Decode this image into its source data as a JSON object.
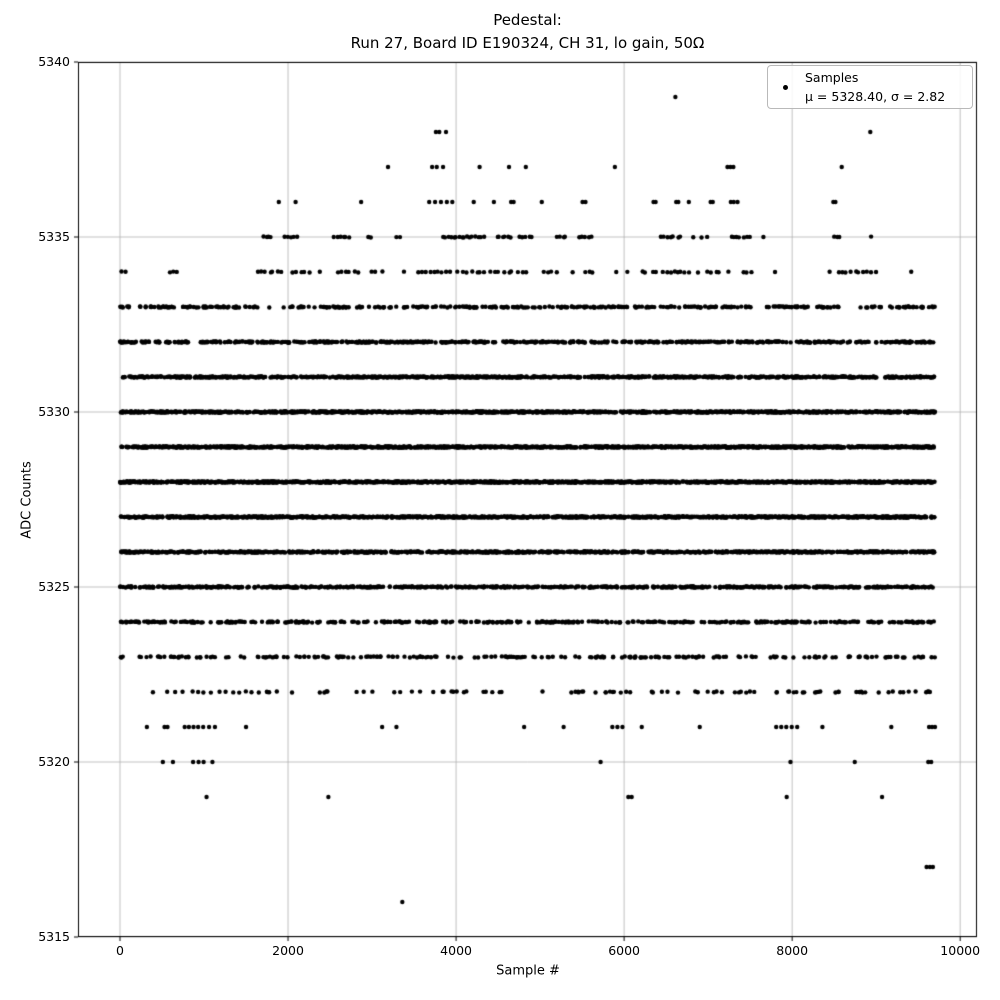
{
  "title": {
    "line1": "Pedestal:",
    "line2": "Run 27, Board ID E190324, CH 31, lo gain, 50Ω"
  },
  "axes": {
    "xlabel": "Sample #",
    "ylabel": "ADC Counts",
    "xlim": [
      -500,
      10200
    ],
    "ylim": [
      5315,
      5340
    ],
    "xtick_values": [
      0,
      2000,
      4000,
      6000,
      8000,
      10000
    ],
    "xtick_labels": [
      "0",
      "2000",
      "4000",
      "6000",
      "8000",
      "10000"
    ],
    "ytick_values": [
      5315,
      5320,
      5325,
      5330,
      5335,
      5340
    ],
    "ytick_labels": [
      "5315",
      "5320",
      "5325",
      "5330",
      "5335",
      "5340"
    ],
    "grid": true,
    "grid_color": "#b0b0b0",
    "spine_color": "#000000"
  },
  "legend": {
    "line1": "Samples",
    "line2": "μ = 5328.40, σ = 2.82",
    "position": "upper right"
  },
  "chart_data": {
    "type": "scatter",
    "title": "Pedestal: Run 27, Board ID E190324, CH 31, lo gain, 50Ω",
    "xlabel": "Sample #",
    "ylabel": "ADC Counts",
    "xlim": [
      -500,
      10200
    ],
    "ylim": [
      5315,
      5340
    ],
    "marker_color": "#000000",
    "marker_radius_px": 2.2,
    "x_max_sample": 9700,
    "stats": {
      "mu": 5328.4,
      "sigma": 2.82,
      "n_samples_approx": 9700
    },
    "uniform_levels": [
      {
        "adc": 5333,
        "count": 370
      },
      {
        "adc": 5332,
        "count": 610
      },
      {
        "adc": 5331,
        "count": 900
      },
      {
        "adc": 5330,
        "count": 1170
      },
      {
        "adc": 5329,
        "count": 1330
      },
      {
        "adc": 5328,
        "count": 1350
      },
      {
        "adc": 5327,
        "count": 1210
      },
      {
        "adc": 5326,
        "count": 950
      },
      {
        "adc": 5325,
        "count": 670
      },
      {
        "adc": 5324,
        "count": 410
      },
      {
        "adc": 5323,
        "count": 225
      },
      {
        "adc": 5322,
        "count": 110
      }
    ],
    "segment_levels": [
      {
        "adc": 5335,
        "segments": [
          [
            1690,
            1820,
            4
          ],
          [
            1940,
            2120,
            5
          ],
          [
            2540,
            2740,
            6
          ],
          [
            2930,
            3010,
            2
          ],
          [
            3280,
            3340,
            2
          ],
          [
            3830,
            4340,
            16
          ],
          [
            4470,
            4660,
            6
          ],
          [
            4730,
            4930,
            5
          ],
          [
            5170,
            5330,
            4
          ],
          [
            5440,
            5630,
            5
          ],
          [
            6400,
            6700,
            7
          ],
          [
            6790,
            7010,
            3
          ],
          [
            7250,
            7510,
            7
          ],
          [
            7640,
            7680,
            1
          ],
          [
            8480,
            8590,
            3
          ],
          [
            8910,
            8950,
            1
          ]
        ]
      },
      {
        "adc": 5334,
        "segments": [
          [
            0,
            70,
            2
          ],
          [
            580,
            700,
            3
          ],
          [
            1630,
            1930,
            7
          ],
          [
            2030,
            2280,
            5
          ],
          [
            2350,
            2400,
            1
          ],
          [
            2570,
            2850,
            6
          ],
          [
            2950,
            3130,
            3
          ],
          [
            3370,
            3410,
            1
          ],
          [
            3520,
            3960,
            9
          ],
          [
            4000,
            4860,
            16
          ],
          [
            5010,
            5210,
            4
          ],
          [
            5360,
            5400,
            1
          ],
          [
            5530,
            5640,
            3
          ],
          [
            5890,
            5930,
            1
          ],
          [
            6010,
            6050,
            1
          ],
          [
            6180,
            6410,
            4
          ],
          [
            6450,
            6790,
            8
          ],
          [
            6870,
            6910,
            1
          ],
          [
            6960,
            7170,
            4
          ],
          [
            7220,
            7260,
            1
          ],
          [
            7380,
            7540,
            3
          ],
          [
            7790,
            7830,
            1
          ],
          [
            8410,
            8450,
            1
          ],
          [
            8530,
            9010,
            10
          ],
          [
            9400,
            9440,
            1
          ]
        ]
      }
    ],
    "explicit_levels": [
      {
        "adc": 5339,
        "x": [
          6610
        ]
      },
      {
        "adc": 5338,
        "x": [
          3760,
          3800,
          3880,
          8930
        ]
      },
      {
        "adc": 5337,
        "x": [
          3190,
          3715,
          3770,
          3845,
          4280,
          4630,
          4830,
          5890,
          7230,
          7265,
          7300,
          8590
        ]
      },
      {
        "adc": 5336,
        "x": [
          1890,
          2090,
          2870,
          3680,
          3750,
          3820,
          3890,
          3955,
          4210,
          4450,
          4655,
          4685,
          5020,
          5505,
          5540,
          6350,
          6375,
          6620,
          6645,
          6770,
          7030,
          7055,
          7270,
          7305,
          7350,
          8490,
          8515
        ]
      },
      {
        "adc": 5321,
        "x": [
          320,
          530,
          565,
          770,
          820,
          875,
          930,
          990,
          1060,
          1130,
          1500,
          3120,
          3290,
          4810,
          5280,
          5860,
          5920,
          5980,
          6210,
          6900,
          7810,
          7870,
          7930,
          7995,
          8060,
          8360,
          9180,
          9630,
          9665,
          9700
        ]
      },
      {
        "adc": 5320,
        "x": [
          510,
          630,
          870,
          935,
          995,
          1100,
          5720,
          7980,
          8745,
          9620,
          9655
        ]
      },
      {
        "adc": 5319,
        "x": [
          1030,
          2480,
          6050,
          6090,
          7935,
          9070
        ]
      },
      {
        "adc": 5317,
        "x": [
          9600,
          9640,
          9675
        ]
      },
      {
        "adc": 5316,
        "x": [
          3360
        ]
      }
    ]
  }
}
